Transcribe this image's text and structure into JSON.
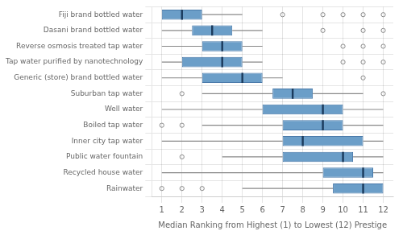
{
  "chart_data": {
    "type": "boxplot",
    "orientation": "horizontal",
    "categories": [
      "Fiji brand bottled water",
      "Dasani brand bottled water",
      "Reverse osmosis treated tap water",
      "Tap water purified by nanotechnology",
      "Generic (store) brand bottled water",
      "Suburban tap water",
      "Well water",
      "Boiled tap water",
      "Inner city tap water",
      "Public water fountain",
      "Recycled house water",
      "Rainwater"
    ],
    "boxes": [
      {
        "whislo": 1,
        "q1": 1,
        "med": 2,
        "q3": 3,
        "whishi": 5,
        "fliers": [
          7,
          9,
          10,
          11,
          12
        ]
      },
      {
        "whislo": 1,
        "q1": 2.5,
        "med": 3.5,
        "q3": 4.5,
        "whishi": 6,
        "fliers": [
          9,
          11,
          12
        ]
      },
      {
        "whislo": 1,
        "q1": 3,
        "med": 4,
        "q3": 5,
        "whishi": 6,
        "fliers": [
          10,
          11,
          12
        ]
      },
      {
        "whislo": 1,
        "q1": 2,
        "med": 4,
        "q3": 5,
        "whishi": 6,
        "fliers": [
          10,
          11,
          12
        ]
      },
      {
        "whislo": 1,
        "q1": 3,
        "med": 5,
        "q3": 6,
        "whishi": 7,
        "fliers": [
          11
        ]
      },
      {
        "whislo": 3,
        "q1": 6.5,
        "med": 7.5,
        "q3": 8.5,
        "whishi": 11,
        "fliers": [
          2,
          12
        ]
      },
      {
        "whislo": 1,
        "q1": 6,
        "med": 9,
        "q3": 10,
        "whishi": 12,
        "fliers": []
      },
      {
        "whislo": 3,
        "q1": 7,
        "med": 9,
        "q3": 10,
        "whishi": 12,
        "fliers": [
          1,
          2
        ]
      },
      {
        "whislo": 1,
        "q1": 7,
        "med": 8,
        "q3": 11,
        "whishi": 12,
        "fliers": []
      },
      {
        "whislo": 4,
        "q1": 7,
        "med": 10,
        "q3": 10.5,
        "whishi": 12,
        "fliers": [
          2
        ]
      },
      {
        "whislo": 1,
        "q1": 9,
        "med": 11,
        "q3": 11.5,
        "whishi": 12,
        "fliers": []
      },
      {
        "whislo": 5,
        "q1": 9.5,
        "med": 11,
        "q3": 12,
        "whishi": 12,
        "fliers": [
          1,
          2,
          3
        ]
      }
    ],
    "color": "#6b9ec8",
    "xlabel": "Median Ranking from Highest (1) to Lowest (12) Prestige",
    "xlim": [
      0.5,
      12.5
    ],
    "xticks": [
      1,
      2,
      3,
      4,
      5,
      6,
      7,
      8,
      9,
      10,
      11,
      12
    ],
    "grid": true
  }
}
